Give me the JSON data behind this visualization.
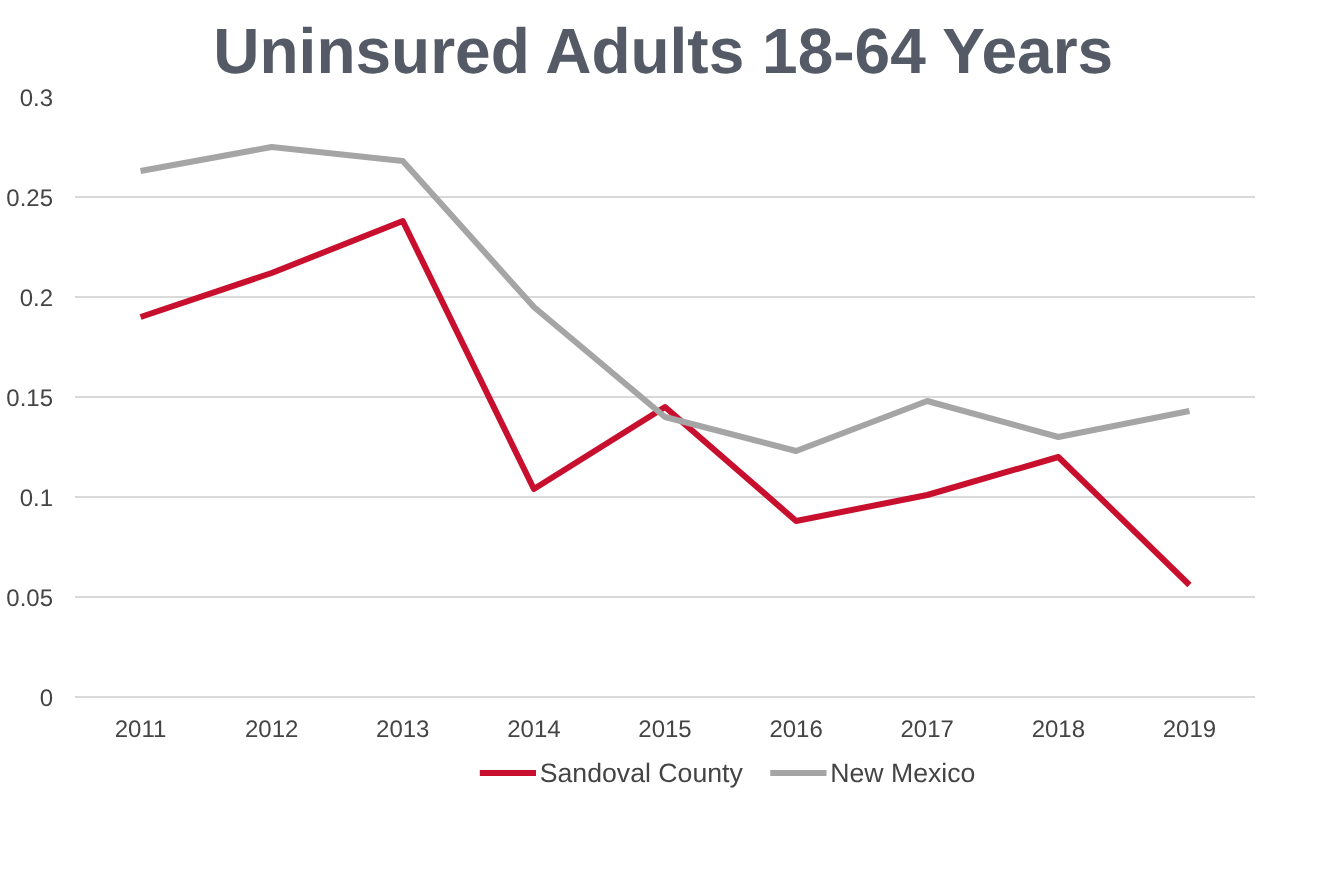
{
  "chart_data": {
    "type": "line",
    "title": "Uninsured Adults 18-64 Years",
    "categories": [
      "2011",
      "2012",
      "2013",
      "2014",
      "2015",
      "2016",
      "2017",
      "2018",
      "2019"
    ],
    "series": [
      {
        "name": "Sandoval County",
        "color": "#c8102e",
        "values": [
          0.19,
          0.212,
          0.238,
          0.104,
          0.145,
          0.088,
          0.101,
          0.12,
          0.056
        ]
      },
      {
        "name": "New Mexico",
        "color": "#a5a5a5",
        "values": [
          0.263,
          0.275,
          0.268,
          0.195,
          0.14,
          0.123,
          0.148,
          0.13,
          0.143
        ]
      }
    ],
    "ylim": [
      0,
      0.3
    ],
    "yticks": [
      0,
      0.05,
      0.1,
      0.15,
      0.2,
      0.25,
      0.3
    ],
    "grid": "y",
    "legend": "bottom",
    "marker": "none",
    "line_style": "solid"
  }
}
